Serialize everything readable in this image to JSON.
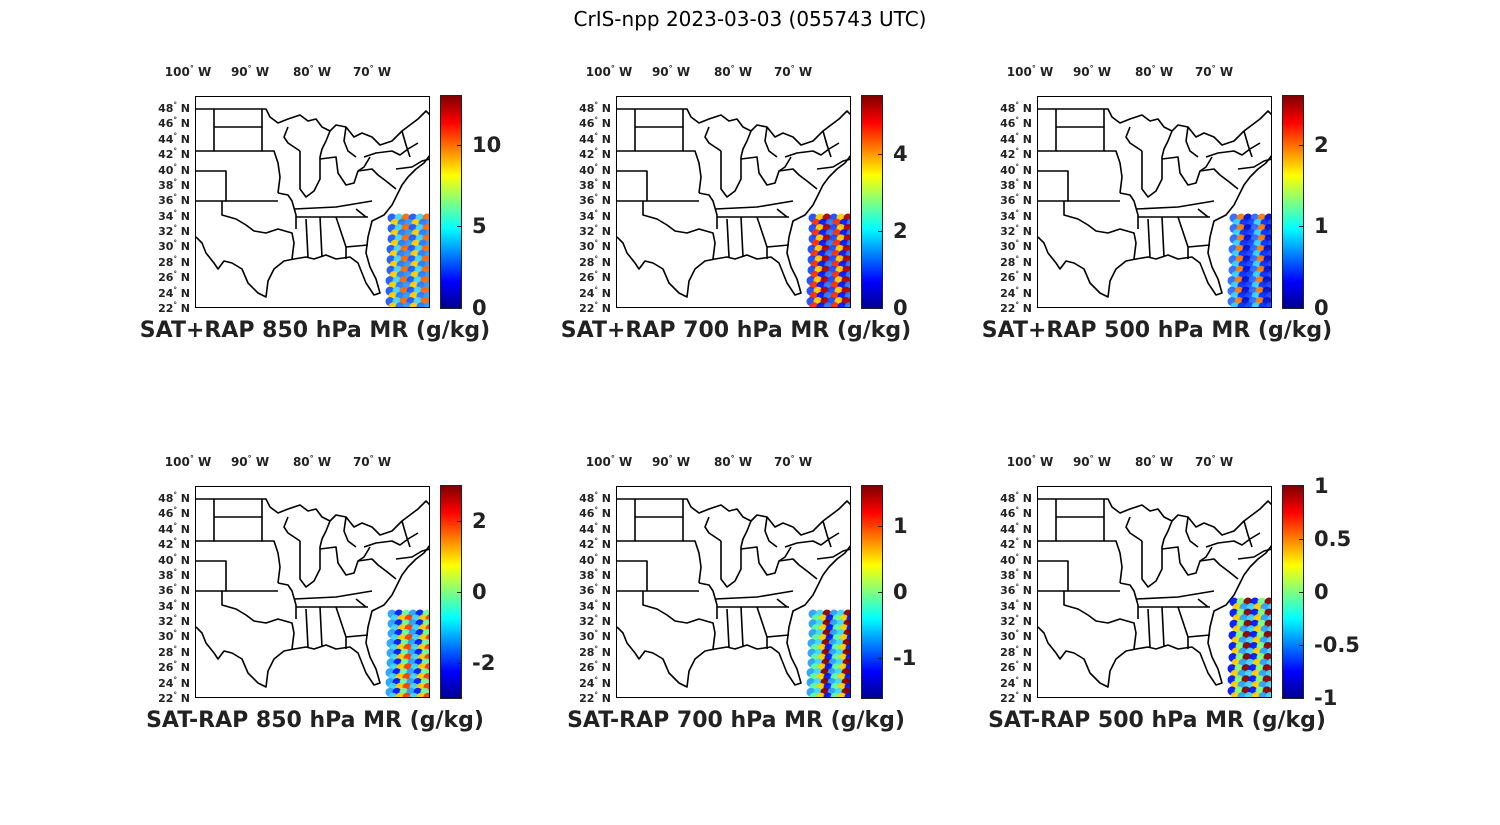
{
  "figure": {
    "title": "CrIS-npp 2023-03-03 (055743 UTC)"
  },
  "lon_labels": [
    "100",
    "90",
    "80",
    "70"
  ],
  "lon_suffix": "W",
  "lat_labels": [
    "48",
    "46",
    "44",
    "42",
    "40",
    "38",
    "36",
    "34",
    "32",
    "30",
    "28",
    "26",
    "24",
    "22"
  ],
  "lat_suffix": "N",
  "degree_symbol": "°",
  "colormap": "jet",
  "panels": [
    {
      "title": "SAT+RAP 850 hPa MR (g/kg)",
      "colorbar_range": [
        0,
        13
      ],
      "ticks": [
        "10",
        "5",
        "0"
      ],
      "tick_values": [
        10,
        5,
        0
      ]
    },
    {
      "title": "SAT+RAP 700 hPa MR (g/kg)",
      "colorbar_range": [
        0,
        5.5
      ],
      "ticks": [
        "4",
        "2",
        "0"
      ],
      "tick_values": [
        4,
        2,
        0
      ]
    },
    {
      "title": "SAT+RAP 500 hPa MR (g/kg)",
      "colorbar_range": [
        0,
        2.6
      ],
      "ticks": [
        "2",
        "1",
        "0"
      ],
      "tick_values": [
        2,
        1,
        0
      ]
    },
    {
      "title": "SAT-RAP 850 hPa MR (g/kg)",
      "colorbar_range": [
        -3,
        3
      ],
      "ticks": [
        "2",
        "0",
        "-2"
      ],
      "tick_values": [
        2,
        0,
        -2
      ]
    },
    {
      "title": "SAT-RAP 700 hPa MR (g/kg)",
      "colorbar_range": [
        -1.6,
        1.6
      ],
      "ticks": [
        "1",
        "0",
        "-1"
      ],
      "tick_values": [
        1,
        0,
        -1
      ]
    },
    {
      "title": "SAT-RAP 500 hPa MR (g/kg)",
      "colorbar_range": [
        -1,
        1
      ],
      "ticks": [
        "1",
        "0.5",
        "0",
        "-0.5",
        "-1"
      ],
      "tick_values": [
        1,
        0.5,
        0,
        -0.5,
        -1
      ]
    }
  ]
}
